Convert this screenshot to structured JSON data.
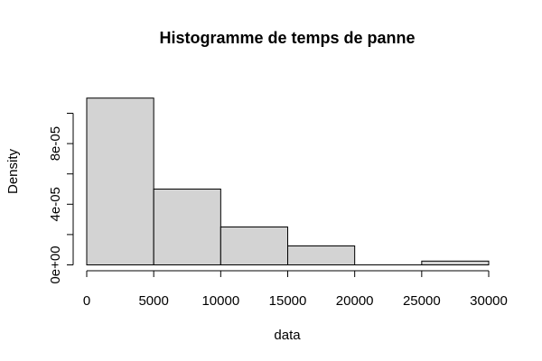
{
  "chart_data": {
    "type": "bar",
    "subtype": "histogram",
    "title": "Histogramme de temps de panne",
    "xlabel": "data",
    "ylabel": "Density",
    "bin_edges": [
      0,
      5000,
      10000,
      15000,
      20000,
      25000,
      30000
    ],
    "values": [
      0.00011,
      5e-05,
      2.5e-05,
      1.25e-05,
      0,
      2.5e-06
    ],
    "xlim": [
      0,
      30000
    ],
    "x_ticks": [
      0,
      5000,
      10000,
      15000,
      20000,
      25000,
      30000
    ],
    "x_tick_labels": [
      "0",
      "5000",
      "10000",
      "15000",
      "20000",
      "25000",
      "30000"
    ],
    "y_ticks": [
      0,
      2e-05,
      4e-05,
      6e-05,
      8e-05,
      0.0001
    ],
    "y_tick_labels": [
      "0e+00",
      "",
      "4e-05",
      "",
      "8e-05",
      ""
    ],
    "grid": false,
    "bar_fill": "#d3d3d3",
    "bar_stroke": "#000000"
  }
}
